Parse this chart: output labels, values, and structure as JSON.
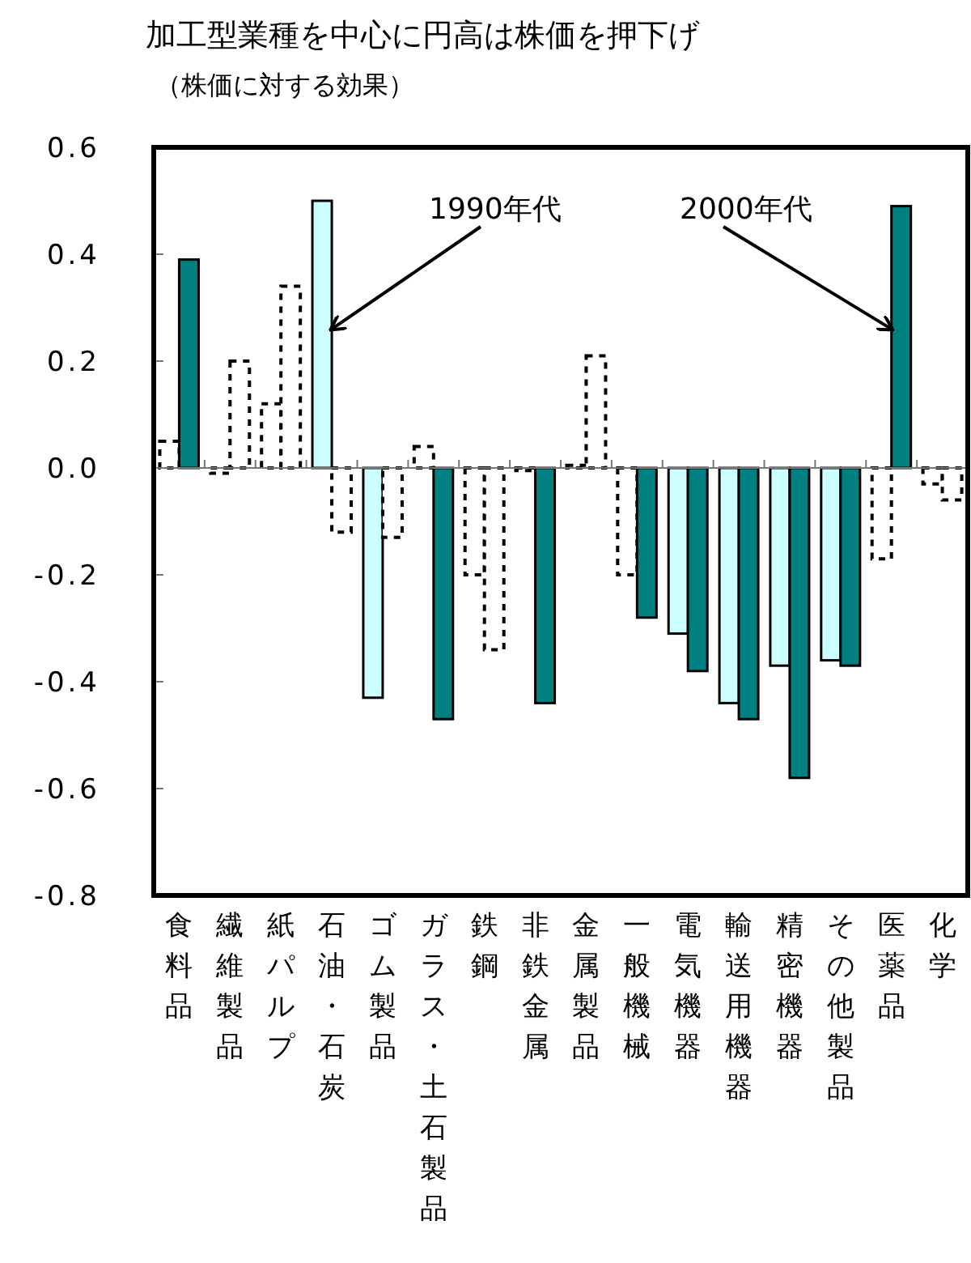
{
  "chart_data": {
    "type": "bar",
    "title": "加工型業種を中心に円高は株価を押下げ",
    "subtitle": "（株価に対する効果）",
    "categories": [
      "食料品",
      "繊維製品",
      "紙パルプ",
      "石油・石炭",
      "ゴム製品",
      "ガラス・土石製品",
      "鉄鋼",
      "非鉄金属",
      "金属製品",
      "一般機械",
      "電気機器",
      "輸送用機器",
      "精密機器",
      "その他製品",
      "医薬品",
      "化学"
    ],
    "series": [
      {
        "values": [
          0.05,
          -0.01,
          0.12,
          0.5,
          -0.43,
          0.04,
          -0.2,
          -0.005,
          0.005,
          -0.2,
          -0.31,
          -0.44,
          -0.37,
          -0.36,
          -0.17,
          -0.03
        ],
        "colors": [
          "#ffffff",
          "#ffffff",
          "#ffffff",
          "#ccffff",
          "#ccffff",
          "#ffffff",
          "#ffffff",
          "#ffffff",
          "#ffffff",
          "#ffffff",
          "#ccffff",
          "#ccffff",
          "#ccffff",
          "#ccffff",
          "#ffffff",
          "#ffffff"
        ]
      },
      {
        "values": [
          0.39,
          0.2,
          0.34,
          -0.12,
          -0.13,
          -0.47,
          -0.34,
          -0.44,
          0.21,
          -0.28,
          -0.38,
          -0.47,
          -0.58,
          -0.37,
          0.49,
          -0.06
        ],
        "colors": [
          "#008080",
          "#ffffff",
          "#ffffff",
          "#ffffff",
          "#ffffff",
          "#008080",
          "#ffffff",
          "#008080",
          "#ffffff",
          "#008080",
          "#008080",
          "#008080",
          "#008080",
          "#008080",
          "#008080",
          "#ffffff"
        ]
      }
    ],
    "ylim": [
      -0.8,
      0.6
    ],
    "yticks": [
      {
        "value": -0.8,
        "label": "-0.8"
      },
      {
        "value": -0.6,
        "label": "-0.6"
      },
      {
        "value": -0.4,
        "label": "-0.4"
      },
      {
        "value": -0.2,
        "label": "-0.2"
      },
      {
        "value": 0,
        "label": "0.0"
      },
      {
        "value": 0.2,
        "label": "0.2"
      },
      {
        "value": 0.4,
        "label": "0.4"
      },
      {
        "value": 0.6,
        "label": "0.6"
      }
    ],
    "annotations": [
      {
        "text": "1990年代",
        "x": "石油・石炭",
        "y": 0.26
      },
      {
        "text": "2000年代",
        "x": "医薬品",
        "y": 0.26
      }
    ]
  }
}
